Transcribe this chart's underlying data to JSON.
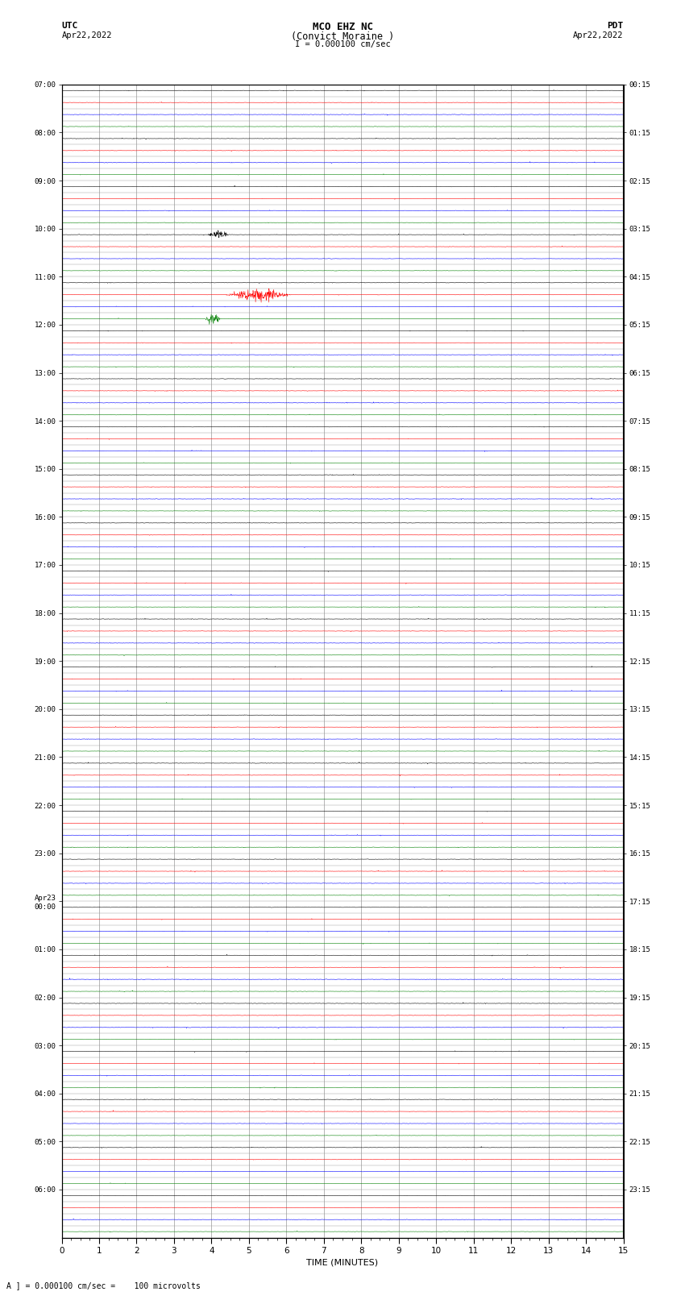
{
  "title_line1": "MCO EHZ NC",
  "title_line2": "(Convict Moraine )",
  "title_line3": "I = 0.000100 cm/sec",
  "left_header_line1": "UTC",
  "left_header_line2": "Apr22,2022",
  "right_header_line1": "PDT",
  "right_header_line2": "Apr22,2022",
  "xlabel": "TIME (MINUTES)",
  "footer": "A ] = 0.000100 cm/sec =    100 microvolts",
  "utc_labels_major": [
    "07:00",
    "08:00",
    "09:00",
    "10:00",
    "11:00",
    "12:00",
    "13:00",
    "14:00",
    "15:00",
    "16:00",
    "17:00",
    "18:00",
    "19:00",
    "20:00",
    "21:00",
    "22:00",
    "23:00",
    "Apr23\n00:00",
    "01:00",
    "02:00",
    "03:00",
    "04:00",
    "05:00",
    "06:00"
  ],
  "pdt_labels_major": [
    "00:15",
    "01:15",
    "02:15",
    "03:15",
    "04:15",
    "05:15",
    "06:15",
    "07:15",
    "08:15",
    "09:15",
    "10:15",
    "11:15",
    "12:15",
    "13:15",
    "14:15",
    "15:15",
    "16:15",
    "17:15",
    "18:15",
    "19:15",
    "20:15",
    "21:15",
    "22:15",
    "23:15"
  ],
  "colors": [
    "black",
    "red",
    "blue",
    "green"
  ],
  "n_rows": 96,
  "rows_per_hour": 4,
  "n_hours": 24,
  "n_minutes": 15,
  "background_color": "white",
  "grid_color": "#888888",
  "spine_color": "black"
}
